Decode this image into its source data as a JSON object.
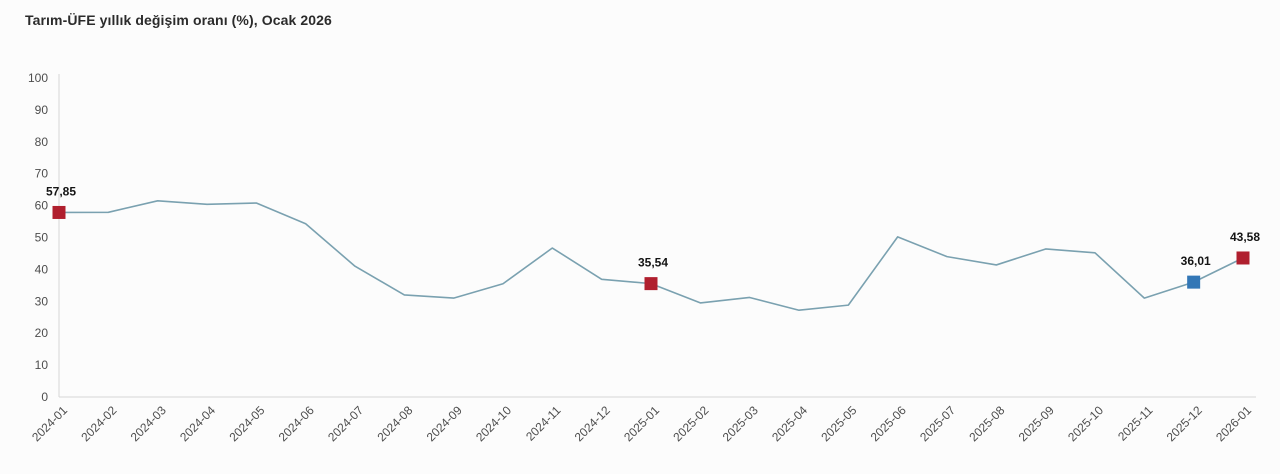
{
  "title": "Tarım-ÜFE yıllık değişim oranı (%), Ocak 2026",
  "chart_data": {
    "type": "line",
    "title": "Tarım-ÜFE yıllık değişim oranı (%), Ocak 2026",
    "xlabel": "",
    "ylabel": "",
    "ylim": [
      0,
      100
    ],
    "y_ticks": [
      0,
      10,
      20,
      30,
      40,
      50,
      60,
      70,
      80,
      90,
      100
    ],
    "grid": false,
    "legend": "none",
    "line_color": "#7aa1b0",
    "axis_color": "#d6d6d6",
    "categories": [
      "2024-01",
      "2024-02",
      "2024-03",
      "2024-04",
      "2024-05",
      "2024-06",
      "2024-07",
      "2024-08",
      "2024-09",
      "2024-10",
      "2024-11",
      "2024-12",
      "2025-01",
      "2025-02",
      "2025-03",
      "2025-04",
      "2025-05",
      "2025-06",
      "2025-07",
      "2025-08",
      "2025-09",
      "2025-10",
      "2025-11",
      "2025-12",
      "2026-01"
    ],
    "series": [
      {
        "name": "Tarım-ÜFE yıllık değişim oranı (%)",
        "values": [
          57.85,
          57.9,
          61.5,
          60.4,
          60.8,
          54.3,
          41.0,
          32.0,
          31.0,
          35.5,
          46.7,
          36.9,
          35.54,
          29.5,
          31.2,
          27.2,
          28.8,
          50.2,
          44.0,
          41.4,
          46.4,
          45.2,
          31.0,
          36.01,
          43.58
        ]
      }
    ],
    "highlights": [
      {
        "category": "2024-01",
        "index": 0,
        "value": 57.85,
        "label": "57,85",
        "color": "#b01f2e"
      },
      {
        "category": "2025-01",
        "index": 12,
        "value": 35.54,
        "label": "35,54",
        "color": "#b01f2e"
      },
      {
        "category": "2025-12",
        "index": 23,
        "value": 36.01,
        "label": "36,01",
        "color": "#3377b6"
      },
      {
        "category": "2026-01",
        "index": 24,
        "value": 43.58,
        "label": "43,58",
        "color": "#b01f2e"
      }
    ]
  }
}
